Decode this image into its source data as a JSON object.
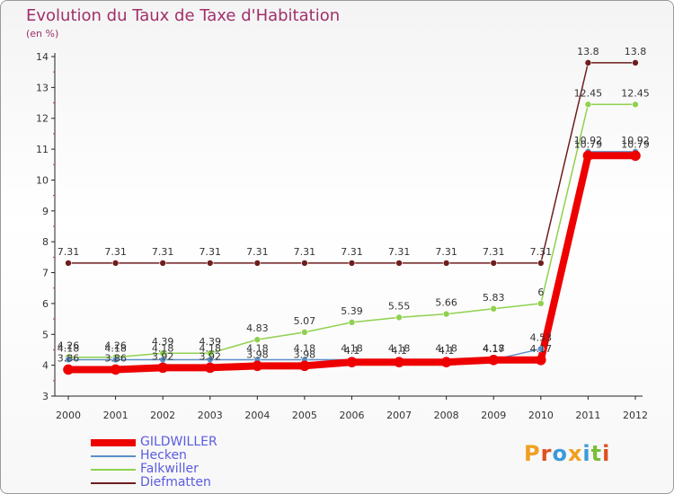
{
  "title": "Evolution du Taux de Taxe d'Habitation",
  "subtitle": "(en %)",
  "logo": {
    "letters": [
      "P",
      "r",
      "o",
      "x",
      "i",
      "t",
      "i"
    ],
    "colors": [
      "#f0a020",
      "#e05020",
      "#3a9ad9",
      "#f0a020",
      "#3a9ad9",
      "#7abf3a",
      "#e05020"
    ]
  },
  "chart_data": {
    "type": "line",
    "title": "Evolution du Taux de Taxe d'Habitation",
    "ylabel": "(en %)",
    "x": [
      "2000",
      "2001",
      "2002",
      "2003",
      "2004",
      "2005",
      "2006",
      "2007",
      "2008",
      "2009",
      "2010",
      "2011",
      "2012"
    ],
    "ylim": [
      3,
      14
    ],
    "yticks": [
      "3",
      "4",
      "5",
      "6",
      "7",
      "8",
      "9",
      "10",
      "11",
      "12",
      "13",
      "14"
    ],
    "legend_position": "bottom-left",
    "series": [
      {
        "name": "GILDWILLER",
        "color": "#ee0000",
        "values": [
          3.86,
          3.86,
          3.92,
          3.92,
          3.98,
          3.98,
          4.1,
          4.1,
          4.1,
          4.17,
          4.17,
          10.79,
          10.79
        ],
        "labels": [
          "3.86",
          "3.86",
          "3.92",
          "3.92",
          "3.98",
          "3.98",
          "4.1",
          "4.1",
          "4.1",
          "4.17",
          "4.17",
          "10.79",
          "10.79"
        ]
      },
      {
        "name": "Hecken",
        "color": "#5b8fc7",
        "values": [
          4.18,
          4.18,
          4.18,
          4.18,
          4.18,
          4.18,
          4.18,
          4.18,
          4.18,
          4.18,
          4.53,
          10.92,
          10.92
        ],
        "labels": [
          "4.18",
          "4.18",
          "4.18",
          "4.18",
          "4.18",
          "4.18",
          "4.18",
          "4.18",
          "4.18",
          "4.18",
          "4.53",
          "10.92",
          "10.92"
        ]
      },
      {
        "name": "Falkwiller",
        "color": "#8fd14f",
        "values": [
          4.26,
          4.26,
          4.39,
          4.39,
          4.83,
          5.07,
          5.39,
          5.55,
          5.66,
          5.83,
          6.0,
          12.45,
          12.45
        ],
        "labels": [
          "4.26",
          "4.26",
          "4.39",
          "4.39",
          "4.83",
          "5.07",
          "5.39",
          "5.55",
          "5.66",
          "5.83",
          "6",
          "12.45",
          "12.45"
        ]
      },
      {
        "name": "Diefmatten",
        "color": "#6e1e1e",
        "values": [
          7.31,
          7.31,
          7.31,
          7.31,
          7.31,
          7.31,
          7.31,
          7.31,
          7.31,
          7.31,
          7.31,
          13.8,
          13.8
        ],
        "labels": [
          "7.31",
          "7.31",
          "7.31",
          "7.31",
          "7.31",
          "7.31",
          "7.31",
          "7.31",
          "7.31",
          "7.31",
          "7.31",
          "13.8",
          "13.8"
        ]
      }
    ]
  }
}
